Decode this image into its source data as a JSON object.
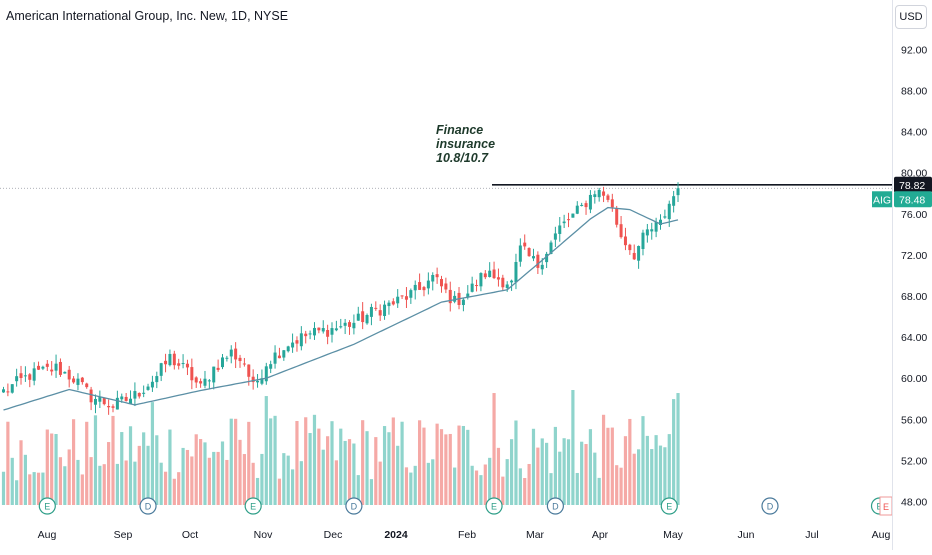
{
  "header": {
    "title": "American International Group, Inc. New, 1D, NYSE"
  },
  "currency_button": "USD",
  "colors": {
    "up": "#26a69a",
    "down": "#ef5350",
    "ma": "#5b8fa5",
    "resistance": "#131722",
    "tag_current": "#22ab94",
    "tag_line": "#131722"
  },
  "price_tags": {
    "line_label": "78.82",
    "symbol": "AIG",
    "current": "78.48"
  },
  "annotation": {
    "lines": [
      "Finance",
      "insurance",
      "10.8/10.7"
    ]
  },
  "events": [
    {
      "letter": "E",
      "date_index": 10,
      "kind": "earnings"
    },
    {
      "letter": "D",
      "date_index": 33,
      "kind": "dividend"
    },
    {
      "letter": "E",
      "date_index": 57,
      "kind": "earnings"
    },
    {
      "letter": "D",
      "date_index": 80,
      "kind": "dividend"
    },
    {
      "letter": "E",
      "date_index": 112,
      "kind": "earnings"
    },
    {
      "letter": "D",
      "date_index": 126,
      "kind": "dividend"
    },
    {
      "letter": "E",
      "date_index": 152,
      "kind": "earnings"
    },
    {
      "letter": "D",
      "date_index": 175,
      "kind": "dividend"
    },
    {
      "letter": "E",
      "date_index": 200,
      "kind": "earnings"
    }
  ],
  "chart_data": {
    "type": "candlestick",
    "title": "American International Group, Inc. New, 1D, NYSE",
    "y_ticks": [
      "92.00",
      "88.00",
      "84.00",
      "80.00",
      "76.00",
      "72.00",
      "68.00",
      "64.00",
      "60.00",
      "56.00",
      "52.00",
      "48.00"
    ],
    "ylim": [
      46.2,
      96.8
    ],
    "x_ticks": [
      {
        "label": "Aug",
        "bold": false
      },
      {
        "label": "Sep",
        "bold": false
      },
      {
        "label": "Oct",
        "bold": false
      },
      {
        "label": "Nov",
        "bold": false
      },
      {
        "label": "Dec",
        "bold": false
      },
      {
        "label": "2024",
        "bold": true
      },
      {
        "label": "Feb",
        "bold": false
      },
      {
        "label": "Mar",
        "bold": false
      },
      {
        "label": "Apr",
        "bold": false
      },
      {
        "label": "May",
        "bold": false
      },
      {
        "label": "Jun",
        "bold": false
      },
      {
        "label": "Jul",
        "bold": false
      },
      {
        "label": "Aug",
        "bold": false
      }
    ],
    "close_path": [
      [
        0,
        58.7
      ],
      [
        6,
        60.3
      ],
      [
        12,
        61.0
      ],
      [
        16,
        60.0
      ],
      [
        20,
        58.2
      ],
      [
        25,
        57.3
      ],
      [
        30,
        58.3
      ],
      [
        35,
        60.2
      ],
      [
        38,
        62.0
      ],
      [
        42,
        60.6
      ],
      [
        45,
        59.0
      ],
      [
        48,
        61.0
      ],
      [
        52,
        62.5
      ],
      [
        55,
        61.5
      ],
      [
        57,
        59.0
      ],
      [
        60,
        61.5
      ],
      [
        65,
        63.4
      ],
      [
        70,
        64.3
      ],
      [
        75,
        64.8
      ],
      [
        80,
        65.4
      ],
      [
        85,
        66.6
      ],
      [
        90,
        67.5
      ],
      [
        95,
        68.6
      ],
      [
        98,
        69.8
      ],
      [
        103,
        67.4
      ],
      [
        106,
        68.3
      ],
      [
        110,
        70.2
      ],
      [
        116,
        69.2
      ],
      [
        118,
        72.5
      ],
      [
        122,
        71.0
      ],
      [
        127,
        74.6
      ],
      [
        132,
        76.6
      ],
      [
        135,
        78.3
      ],
      [
        138,
        77.6
      ],
      [
        141,
        73.9
      ],
      [
        144,
        72.1
      ],
      [
        147,
        74.2
      ],
      [
        150,
        75.0
      ],
      [
        152,
        77.0
      ],
      [
        154,
        78.48
      ]
    ],
    "ma_path": [
      [
        0,
        56.9
      ],
      [
        15,
        58.9
      ],
      [
        30,
        57.4
      ],
      [
        45,
        58.8
      ],
      [
        60,
        60.0
      ],
      [
        80,
        63.3
      ],
      [
        100,
        67.4
      ],
      [
        115,
        68.6
      ],
      [
        125,
        72.2
      ],
      [
        134,
        75.5
      ],
      [
        138,
        76.6
      ],
      [
        143,
        76.4
      ],
      [
        150,
        75.0
      ],
      [
        154,
        75.4
      ]
    ],
    "resistance_level": 78.82,
    "current_price": 78.48,
    "volume_range": [
      0,
      38
    ]
  }
}
